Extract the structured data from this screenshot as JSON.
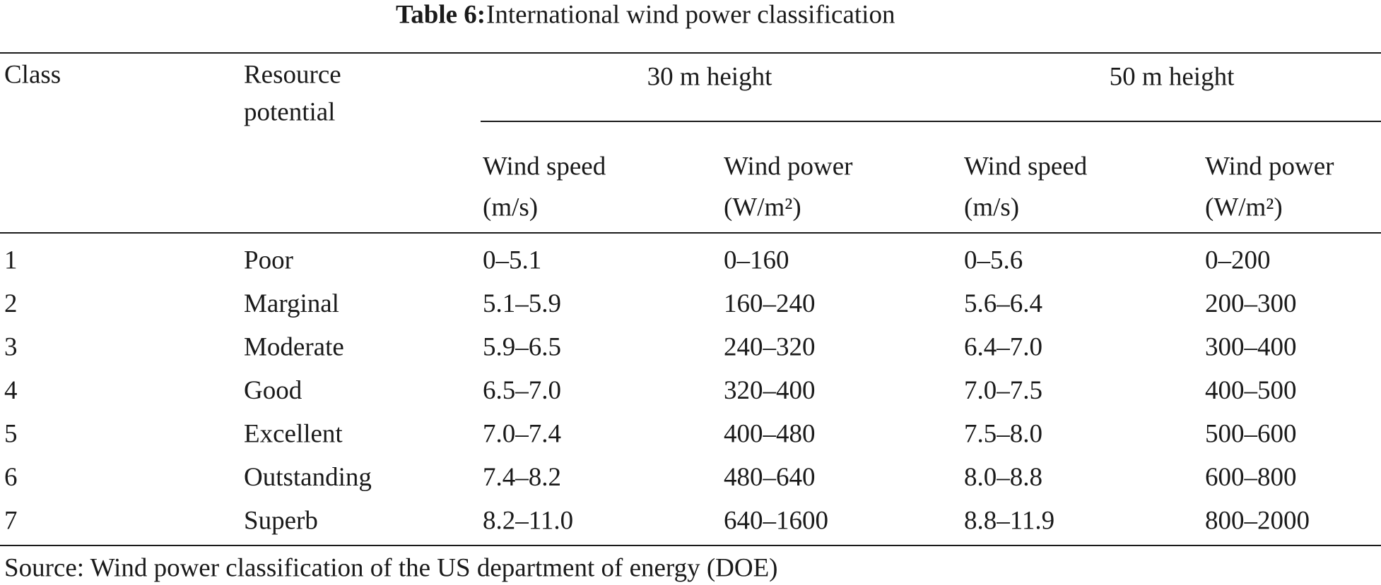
{
  "title": {
    "label": "Table 6:",
    "text": "International wind power classification"
  },
  "table": {
    "headers": {
      "class": "Class",
      "resource": [
        "Resource",
        "potential"
      ],
      "groups": [
        "30 m height",
        "50 m height"
      ],
      "subheaders": [
        [
          "Wind speed",
          "(m/s)"
        ],
        [
          "Wind power",
          "(W/m²)"
        ],
        [
          "Wind speed",
          "(m/s)"
        ],
        [
          "Wind power",
          "(W/m²)"
        ]
      ]
    },
    "rows": [
      [
        "1",
        "Poor",
        "0–5.1",
        "0–160",
        "0–5.6",
        "0–200"
      ],
      [
        "2",
        "Marginal",
        "5.1–5.9",
        "160–240",
        "5.6–6.4",
        "200–300"
      ],
      [
        "3",
        "Moderate",
        "5.9–6.5",
        "240–320",
        "6.4–7.0",
        "300–400"
      ],
      [
        "4",
        "Good",
        "6.5–7.0",
        "320–400",
        "7.0–7.5",
        "400–500"
      ],
      [
        "5",
        "Excellent",
        "7.0–7.4",
        "400–480",
        "7.5–8.0",
        "500–600"
      ],
      [
        "6",
        "Outstanding",
        "7.4–8.2",
        "480–640",
        "8.0–8.8",
        "600–800"
      ],
      [
        "7",
        "Superb",
        "8.2–11.0",
        "640–1600",
        "8.8–11.9",
        "800–2000"
      ]
    ]
  },
  "source": "Source: Wind power classification of the US department of energy (DOE)"
}
